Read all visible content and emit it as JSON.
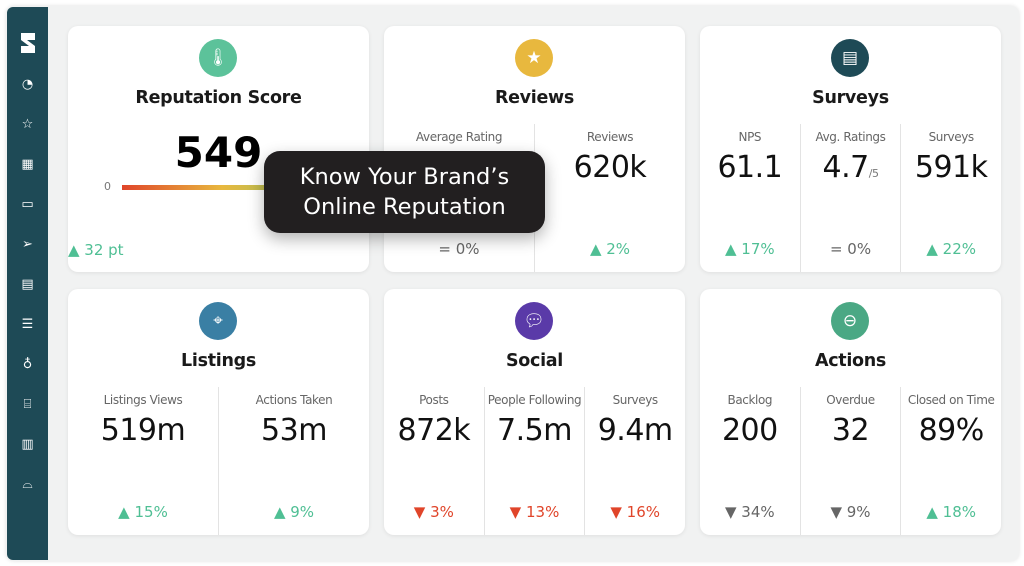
{
  "sidebar": {
    "items": [
      "logo",
      "dashboard-icon",
      "star-icon",
      "building-icon",
      "chat-icon",
      "send-icon",
      "clipboard-icon",
      "checklist-icon",
      "lightbulb-icon",
      "thermometer-icon",
      "bar-chart-icon",
      "inbox-icon"
    ]
  },
  "colors": {
    "sidebar": "#1e4a56",
    "up": "#4fbf94",
    "down": "#e0452a",
    "reputation": "#5cc29a",
    "reviews": "#e8b83e",
    "surveys": "#1e4a56",
    "listings": "#3a7fa4",
    "social": "#5a3aa8",
    "actions": "#4aa884"
  },
  "reputation": {
    "title": "Reputation Score",
    "score": "549",
    "gauge_min": "0",
    "change": "▲ 32 pt"
  },
  "reviews": {
    "title": "Reviews",
    "cols": [
      {
        "label": "Average Rating",
        "value": "",
        "change": "= 0%"
      },
      {
        "label": "Reviews",
        "value": "620k",
        "change": "▲ 2%"
      }
    ]
  },
  "surveys": {
    "title": "Surveys",
    "cols": [
      {
        "label": "NPS",
        "value": "61.1",
        "change": "▲ 17%"
      },
      {
        "label": "Avg. Ratings",
        "value": "4.7",
        "suffix": "/5",
        "change": "= 0%"
      },
      {
        "label": "Surveys",
        "value": "591k",
        "change": "▲ 22%"
      }
    ]
  },
  "listings": {
    "title": "Listings",
    "cols": [
      {
        "label": "Listings Views",
        "value": "519m",
        "change": "▲ 15%"
      },
      {
        "label": "Actions Taken",
        "value": "53m",
        "change": "▲ 9%"
      }
    ]
  },
  "social": {
    "title": "Social",
    "cols": [
      {
        "label": "Posts",
        "value": "872k",
        "change": "▼ 3%"
      },
      {
        "label": "People Following",
        "value": "7.5m",
        "change": "▼ 13%"
      },
      {
        "label": "Surveys",
        "value": "9.4m",
        "change": "▼ 16%"
      }
    ]
  },
  "actions": {
    "title": "Actions",
    "cols": [
      {
        "label": "Backlog",
        "value": "200",
        "change": "▼ 34%"
      },
      {
        "label": "Overdue",
        "value": "32",
        "change": "▼ 9%"
      },
      {
        "label": "Closed on Time",
        "value": "89%",
        "change": "▲ 18%"
      }
    ]
  },
  "tooltip": {
    "line1": "Know Your Brand’s",
    "line2": "Online Reputation"
  }
}
